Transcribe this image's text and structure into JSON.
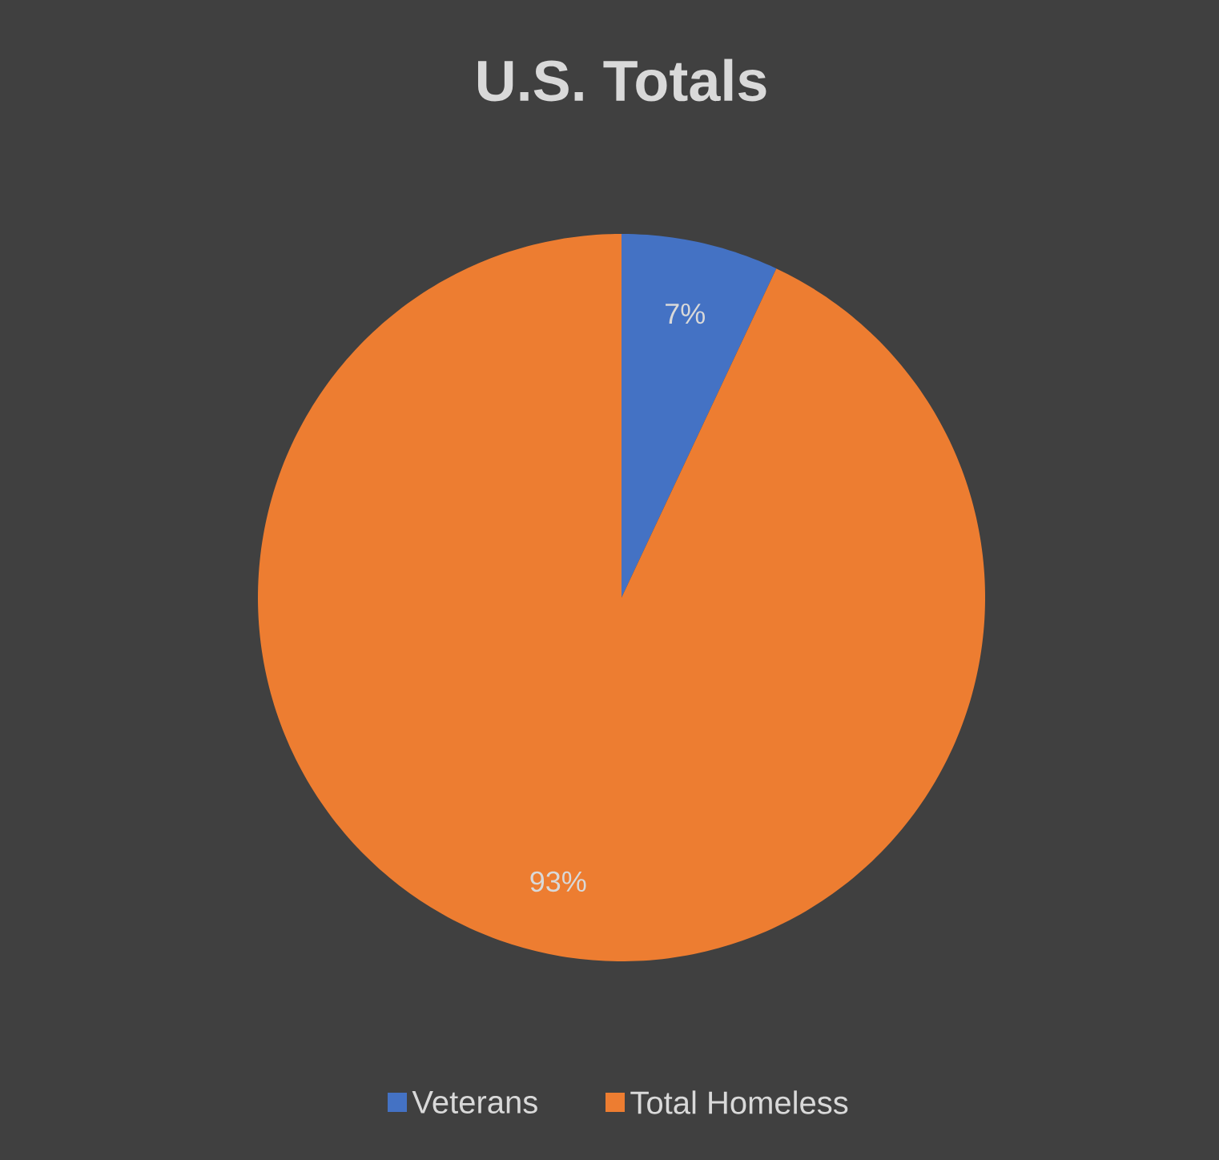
{
  "chart_data": {
    "type": "pie",
    "title": "U.S. Totals",
    "categories": [
      "Veterans",
      "Total Homeless"
    ],
    "values": [
      7,
      93
    ],
    "colors": [
      "#4472c4",
      "#ed7d31"
    ],
    "value_labels": [
      "7%",
      "93%"
    ],
    "legend": "bottom"
  }
}
